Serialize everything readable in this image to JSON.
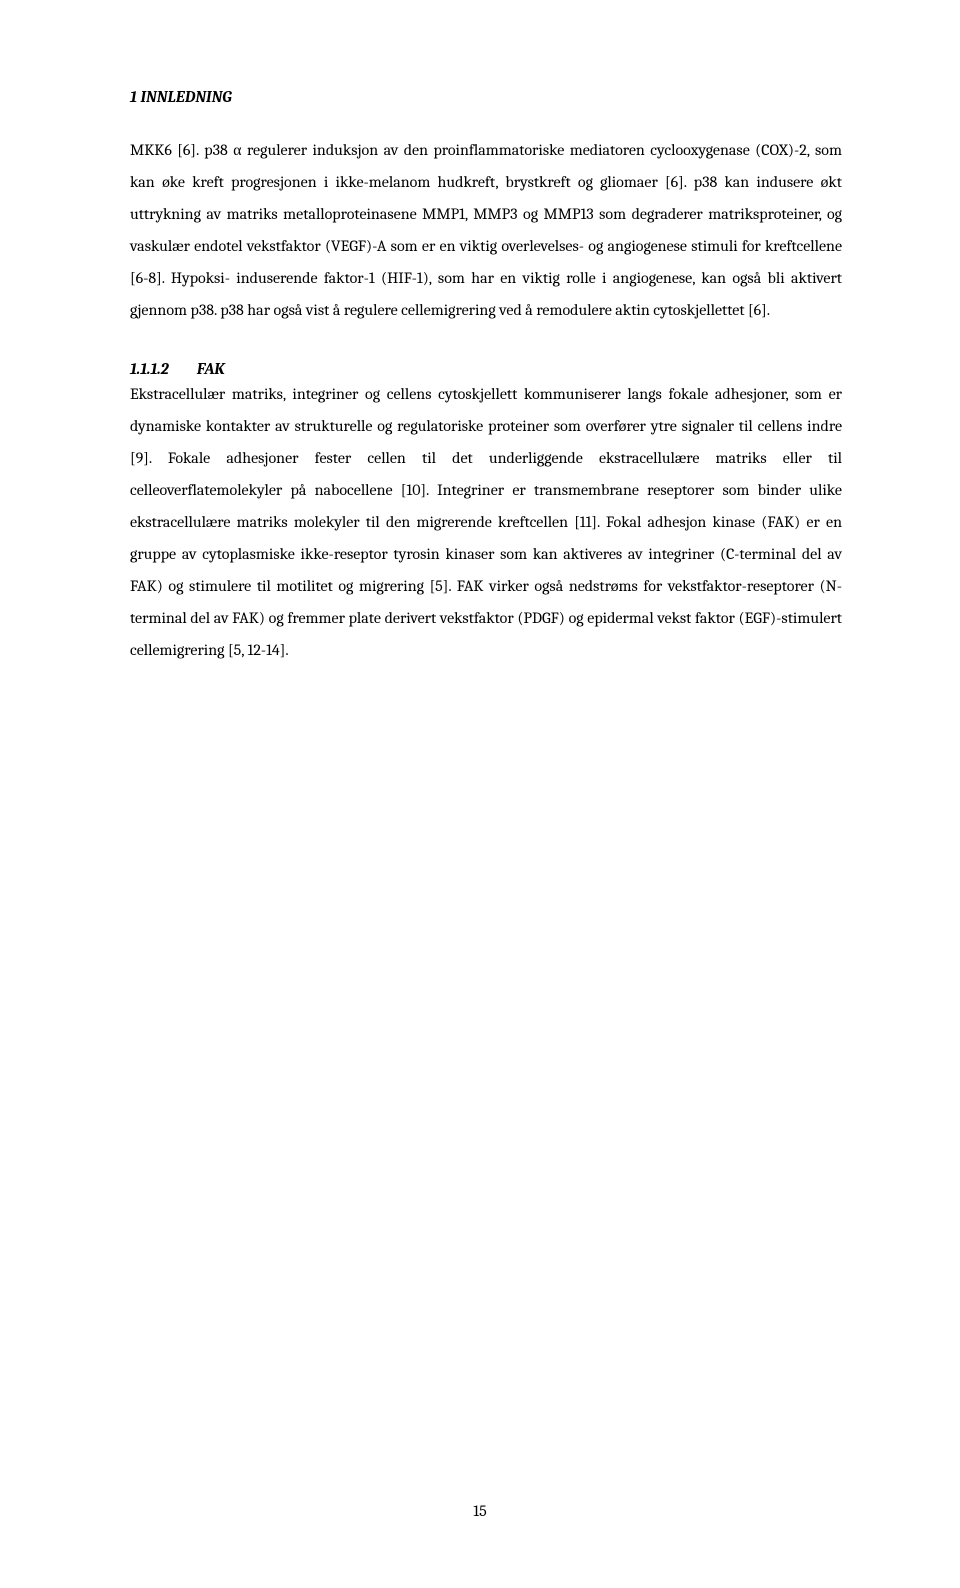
{
  "header": {
    "text": "1  INNLEDNING"
  },
  "paragraphs": {
    "p1": "MKK6 [6]. p38 α regulerer induksjon av den proinflammatoriske mediatoren cyclooxygenase (COX)-2, som kan øke kreft progresjonen i ikke-melanom hudkreft, brystkreft og gliomaer [6]. p38 kan indusere økt uttrykning av matriks metalloproteinasene MMP1, MMP3 og MMP13 som degraderer matriksproteiner, og vaskulær endotel vekstfaktor (VEGF)-A som er en viktig overlevelses- og angiogenese stimuli for kreftcellene [6-8]. Hypoksi- induserende faktor-1 (HIF-1), som har en viktig rolle i angiogenese, kan også bli aktivert gjennom p38. p38 har også vist å regulere cellemigrering ved å remodulere aktin cytoskjellettet [6].",
    "p2": "Ekstracellulær matriks, integriner og cellens cytoskjellett kommuniserer langs fokale adhesjoner, som er dynamiske kontakter av strukturelle og regulatoriske proteiner som overfører ytre signaler til cellens indre [9]. Fokale adhesjoner fester cellen til det underliggende ekstracellulære matriks eller til celleoverflatemolekyler på nabocellene [10]. Integriner er transmembrane reseptorer som binder ulike ekstracellulære matriks molekyler til den migrerende kreftcellen [11]. Fokal adhesjon kinase (FAK) er en gruppe av cytoplasmiske ikke-reseptor tyrosin kinaser som kan aktiveres av integriner (C-terminal del av FAK) og stimulere til motilitet og migrering [5]. FAK virker også nedstrøms for vekstfaktor-reseptorer (N-terminal del av FAK) og fremmer plate derivert vekstfaktor (PDGF) og epidermal vekst faktor (EGF)-stimulert cellemigrering [5, 12-14]."
  },
  "subheading": {
    "number": "1.1.1.2",
    "title": "FAK"
  },
  "pageNumber": "15",
  "styles": {
    "background": "#ffffff",
    "textColor": "#000000",
    "fontFamily": "Cambria, Georgia, serif",
    "bodyFontSize": 16,
    "lineHeight": 2.0
  }
}
